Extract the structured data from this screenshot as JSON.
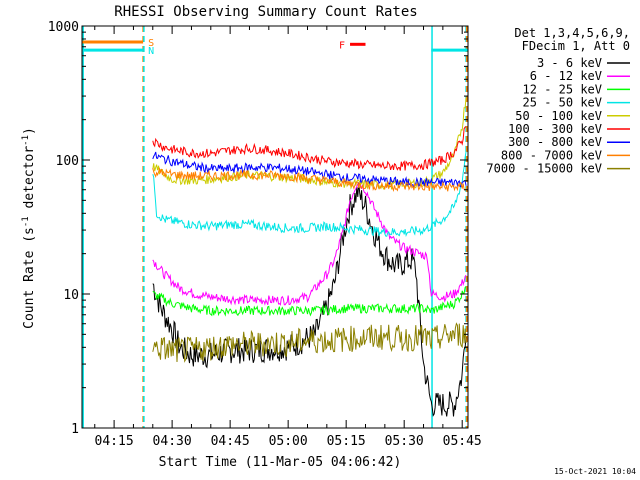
{
  "chart_data": {
    "type": "line",
    "title": "RHESSI Observing Summary Count Rates",
    "xlabel": "Start Time (11-Mar-05 04:06:42)",
    "ylabel_main": "Count Rate (s",
    "ylabel_sup1": "-1",
    "ylabel_mid": " detector",
    "ylabel_sup2": "-1",
    "ylabel_end": ")",
    "y_scale": "log",
    "ylim": [
      1,
      1000
    ],
    "xlim_minutes": [
      6.7,
      106.5
    ],
    "x_ticks": [
      {
        "label": "04:15",
        "minutes": 15
      },
      {
        "label": "04:30",
        "minutes": 30
      },
      {
        "label": "04:45",
        "minutes": 45
      },
      {
        "label": "05:00",
        "minutes": 60
      },
      {
        "label": "05:15",
        "minutes": 75
      },
      {
        "label": "05:30",
        "minutes": 90
      },
      {
        "label": "05:45",
        "minutes": 105
      }
    ],
    "y_ticks": [
      {
        "label": "1",
        "value": 1
      },
      {
        "label": "10",
        "value": 10
      },
      {
        "label": "100",
        "value": 100
      },
      {
        "label": "1000",
        "value": 1000
      }
    ],
    "legend_header": [
      "Det 1,3,4,5,6,9,",
      "FDecim 1, Att 0"
    ],
    "legend_position": "right",
    "timestamp": "15-Oct-2021 10:04",
    "flags": [
      {
        "label": "S",
        "color": "#ff7f00",
        "value": 760,
        "x_start": 6.7,
        "x_end": 22.5
      },
      {
        "label": "N",
        "color": "#00e5e5",
        "value": 660,
        "x_start": 6.7,
        "x_end": 22.5
      },
      {
        "label": "F",
        "color": "#ff0000",
        "value": 730,
        "x_start": 76,
        "x_end": 80
      },
      {
        "label": "",
        "color": "#00e5e5",
        "value": 660,
        "x_start": 97,
        "x_end": 106.5
      }
    ],
    "vlines": [
      {
        "minutes": 7.0,
        "color": "#00e5e5",
        "style": "solid"
      },
      {
        "minutes": 22.5,
        "color": "#ff7f00",
        "style": "dashed"
      },
      {
        "minutes": 22.7,
        "color": "#00e5e5",
        "style": "dashed"
      },
      {
        "minutes": 97.2,
        "color": "#00e5e5",
        "style": "solid"
      },
      {
        "minutes": 106.0,
        "color": "#00e5e5",
        "style": "dashed"
      },
      {
        "minutes": 106.2,
        "color": "#ff7f00",
        "style": "dashed"
      }
    ],
    "series": [
      {
        "name": "3 - 6 keV",
        "color": "#000000",
        "x": [
          25,
          27,
          30,
          32,
          35,
          40,
          45,
          50,
          55,
          60,
          62,
          64,
          67,
          70,
          72,
          74,
          76,
          78,
          80,
          82,
          84,
          86,
          88,
          90,
          92,
          93,
          95,
          97,
          100,
          103,
          105,
          106
        ],
        "y": [
          12,
          8,
          5.5,
          4,
          3.5,
          3.5,
          3.8,
          3.8,
          3.9,
          4,
          4.2,
          4.5,
          5,
          8,
          12,
          25,
          45,
          58,
          45,
          30,
          22,
          18,
          16,
          17,
          18,
          15,
          3,
          1.5,
          1.5,
          1.5,
          2.5,
          6
        ]
      },
      {
        "name": "6 - 12 keV",
        "color": "#ff00ff",
        "x": [
          25,
          28,
          32,
          36,
          40,
          45,
          50,
          55,
          60,
          65,
          67,
          70,
          72,
          74,
          76,
          78,
          80,
          82,
          84,
          86,
          88,
          90,
          92,
          94,
          96,
          97,
          100,
          103,
          105,
          106
        ],
        "y": [
          18,
          14,
          11,
          10,
          9.5,
          9.2,
          9,
          9,
          9,
          9.5,
          11,
          14,
          18,
          28,
          50,
          70,
          60,
          45,
          35,
          27,
          24,
          22,
          21,
          20,
          19,
          10,
          9.5,
          10,
          12,
          14
        ]
      },
      {
        "name": "12 - 25 keV",
        "color": "#00ff00",
        "x": [
          25,
          30,
          35,
          40,
          45,
          50,
          55,
          60,
          65,
          70,
          75,
          80,
          85,
          90,
          95,
          97,
          100,
          103,
          105,
          106
        ],
        "y": [
          10,
          8.5,
          7.8,
          7.5,
          7.5,
          7.5,
          7.5,
          7.5,
          7.5,
          7.6,
          7.8,
          7.8,
          7.8,
          7.8,
          7.8,
          7.5,
          8,
          8.5,
          10,
          12
        ]
      },
      {
        "name": "25 - 50 keV",
        "color": "#00e5e5",
        "x": [
          25,
          25.6,
          26,
          28,
          30,
          35,
          40,
          45,
          50,
          55,
          60,
          65,
          70,
          75,
          80,
          85,
          90,
          95,
          97,
          100,
          103,
          105,
          106
        ],
        "y": [
          78,
          58,
          40,
          36,
          35,
          33,
          32,
          33,
          33,
          32,
          31,
          31,
          32,
          31,
          30,
          29,
          29,
          30,
          32,
          36,
          45,
          70,
          120
        ]
      },
      {
        "name": "50 - 100 keV",
        "color": "#cccc00",
        "x": [
          25,
          28,
          30,
          35,
          40,
          45,
          50,
          55,
          60,
          65,
          70,
          75,
          80,
          85,
          90,
          95,
          97,
          100,
          103,
          105,
          106
        ],
        "y": [
          90,
          78,
          72,
          70,
          72,
          75,
          77,
          76,
          74,
          72,
          68,
          67,
          66,
          65,
          66,
          68,
          72,
          80,
          110,
          180,
          300
        ]
      },
      {
        "name": "100 - 300 keV",
        "color": "#ff0000",
        "x": [
          25,
          28,
          30,
          35,
          40,
          45,
          50,
          55,
          60,
          65,
          70,
          75,
          80,
          85,
          90,
          95,
          97,
          100,
          103,
          105,
          106
        ],
        "y": [
          140,
          125,
          120,
          113,
          112,
          118,
          122,
          118,
          112,
          105,
          98,
          95,
          92,
          90,
          90,
          92,
          95,
          100,
          115,
          140,
          190
        ]
      },
      {
        "name": "300 - 800 keV",
        "color": "#0000ff",
        "x": [
          25,
          30,
          35,
          40,
          45,
          50,
          55,
          60,
          65,
          70,
          75,
          80,
          85,
          90,
          95,
          97,
          100,
          103,
          106
        ],
        "y": [
          108,
          98,
          90,
          86,
          86,
          88,
          88,
          86,
          82,
          78,
          74,
          72,
          70,
          68,
          68,
          68,
          68,
          68,
          68
        ]
      },
      {
        "name": "800 - 7000 keV",
        "color": "#ff7f00",
        "x": [
          25,
          30,
          35,
          40,
          45,
          50,
          55,
          60,
          65,
          70,
          75,
          80,
          85,
          90,
          95,
          97,
          100,
          103,
          106
        ],
        "y": [
          82,
          78,
          76,
          76,
          77,
          77,
          77,
          76,
          73,
          70,
          67,
          65,
          64,
          64,
          63,
          63,
          63,
          63,
          63
        ]
      },
      {
        "name": "7000 - 15000 keV",
        "color": "#8b8000",
        "x": [
          25,
          30,
          35,
          40,
          45,
          50,
          55,
          60,
          65,
          70,
          75,
          80,
          85,
          90,
          95,
          97,
          100,
          103,
          106
        ],
        "y": [
          4,
          3.8,
          3.8,
          4,
          4.2,
          4.2,
          4.3,
          4.3,
          4.5,
          4.5,
          4.6,
          4.7,
          4.8,
          4.6,
          4.8,
          4.5,
          4.8,
          5,
          5
        ]
      }
    ]
  }
}
